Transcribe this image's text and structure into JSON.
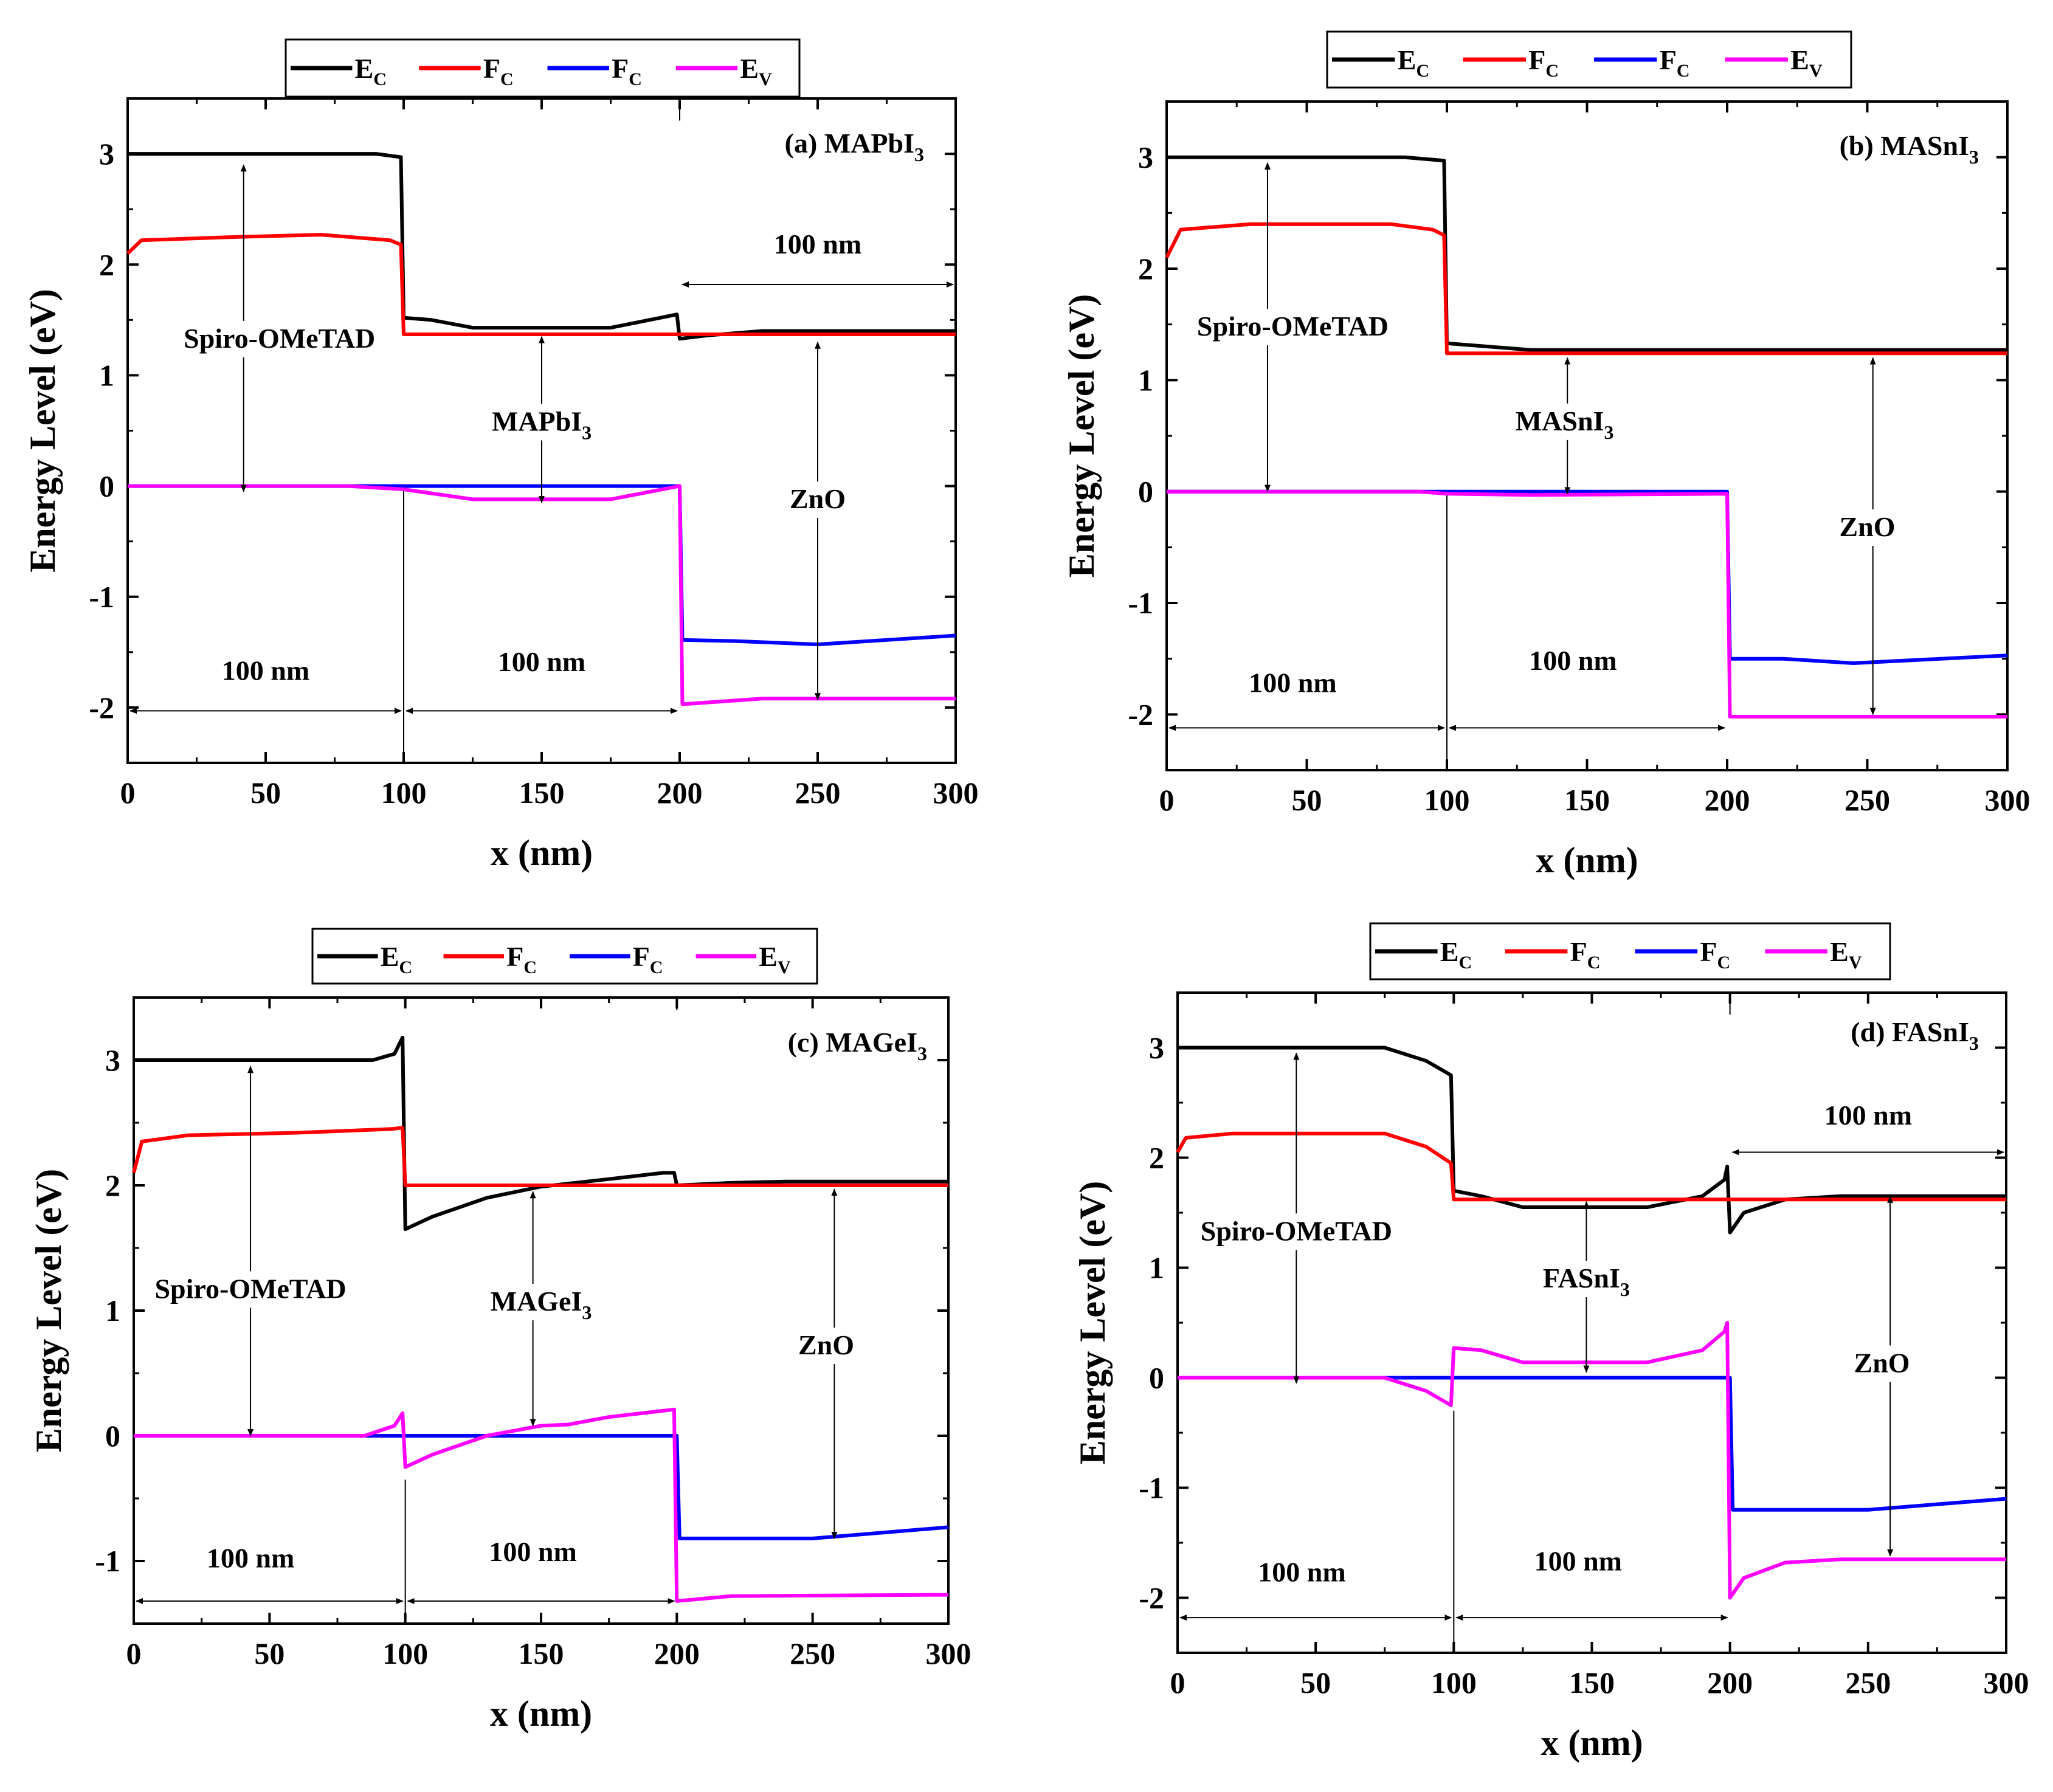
{
  "legend_entries": [
    {
      "main": "E",
      "sub": "C",
      "color": "#000000"
    },
    {
      "main": "F",
      "sub": "C",
      "color": "#ff0000"
    },
    {
      "main": "F",
      "sub": "C",
      "color": "#0000ff"
    },
    {
      "main": "E",
      "sub": "V",
      "color": "#ff00ff"
    }
  ],
  "chart_data": [
    {
      "type": "line",
      "panel_label": {
        "prefix": "(a) MAPbI",
        "sub": "3"
      },
      "xlabel": "x (nm)",
      "ylabel": "Energy Level (eV)",
      "xlim": [
        0,
        300
      ],
      "ylim": [
        -2.5,
        3.5
      ],
      "x_ticks": [
        0,
        50,
        100,
        150,
        200,
        250,
        300
      ],
      "x_tick_labels": [
        "0",
        "50",
        "100",
        "150",
        "200",
        "250",
        "300"
      ],
      "y_ticks": [
        -2,
        -1,
        0,
        1,
        2,
        3
      ],
      "y_tick_labels": [
        "-2",
        "-1",
        "0",
        "1",
        "2",
        "3"
      ],
      "layers": [
        {
          "main": "Spiro-OMeTAD",
          "sub": ""
        },
        {
          "main": "MAPbI",
          "sub": "3"
        },
        {
          "main": "ZnO",
          "sub": ""
        }
      ],
      "thickness_labels": [
        "100 nm",
        "100 nm",
        "100 nm"
      ],
      "series": [
        {
          "name": "E_C",
          "color": "#000000",
          "points": [
            [
              0,
              3.0
            ],
            [
              90,
              3.0
            ],
            [
              99,
              2.97
            ],
            [
              100,
              1.52
            ],
            [
              110,
              1.5
            ],
            [
              125,
              1.43
            ],
            [
              175,
              1.43
            ],
            [
              195,
              1.53
            ],
            [
              199,
              1.55
            ],
            [
              200,
              1.33
            ],
            [
              210,
              1.36
            ],
            [
              230,
              1.4
            ],
            [
              300,
              1.4
            ]
          ]
        },
        {
          "name": "F_C (red)",
          "color": "#ff0000",
          "points": [
            [
              0,
              2.1
            ],
            [
              5,
              2.22
            ],
            [
              40,
              2.25
            ],
            [
              70,
              2.27
            ],
            [
              95,
              2.22
            ],
            [
              99,
              2.18
            ],
            [
              100,
              1.37
            ],
            [
              300,
              1.37
            ]
          ]
        },
        {
          "name": "F_C (blue)",
          "color": "#0000ff",
          "points": [
            [
              0,
              0
            ],
            [
              200,
              0
            ],
            [
              201,
              -1.39
            ],
            [
              220,
              -1.4
            ],
            [
              250,
              -1.43
            ],
            [
              300,
              -1.35
            ]
          ]
        },
        {
          "name": "E_V",
          "color": "#ff00ff",
          "points": [
            [
              0,
              0
            ],
            [
              80,
              0
            ],
            [
              100,
              -0.03
            ],
            [
              125,
              -0.12
            ],
            [
              175,
              -0.12
            ],
            [
              200,
              0
            ],
            [
              201,
              -1.97
            ],
            [
              230,
              -1.92
            ],
            [
              300,
              -1.92
            ]
          ]
        }
      ]
    },
    {
      "type": "line",
      "panel_label": {
        "prefix": "(b) MASnI",
        "sub": "3"
      },
      "xlabel": "x (nm)",
      "ylabel": "Energy Level (eV)",
      "xlim": [
        0,
        300
      ],
      "ylim": [
        -2.5,
        3.5
      ],
      "x_ticks": [
        0,
        50,
        100,
        150,
        200,
        250,
        300
      ],
      "x_tick_labels": [
        "0",
        "50",
        "100",
        "150",
        "200",
        "250",
        "300"
      ],
      "y_ticks": [
        -2,
        -1,
        0,
        1,
        2,
        3
      ],
      "y_tick_labels": [
        "-2",
        "-1",
        "0",
        "1",
        "2",
        "3"
      ],
      "layers": [
        {
          "main": "Spiro-OMeTAD",
          "sub": ""
        },
        {
          "main": "MASnI",
          "sub": "3"
        },
        {
          "main": "ZnO",
          "sub": ""
        }
      ],
      "thickness_labels": [
        "100 nm",
        "100 nm"
      ],
      "series": [
        {
          "name": "E_C",
          "color": "#000000",
          "points": [
            [
              0,
              3.0
            ],
            [
              85,
              3.0
            ],
            [
              99,
              2.97
            ],
            [
              100,
              1.33
            ],
            [
              130,
              1.27
            ],
            [
              300,
              1.27
            ]
          ]
        },
        {
          "name": "F_C (red)",
          "color": "#ff0000",
          "points": [
            [
              0,
              2.1
            ],
            [
              5,
              2.35
            ],
            [
              30,
              2.4
            ],
            [
              80,
              2.4
            ],
            [
              95,
              2.35
            ],
            [
              99,
              2.3
            ],
            [
              100,
              1.24
            ],
            [
              300,
              1.24
            ]
          ]
        },
        {
          "name": "F_C (blue)",
          "color": "#0000ff",
          "points": [
            [
              0,
              0
            ],
            [
              200,
              0
            ],
            [
              201,
              -1.5
            ],
            [
              220,
              -1.5
            ],
            [
              245,
              -1.54
            ],
            [
              300,
              -1.47
            ]
          ]
        },
        {
          "name": "E_V",
          "color": "#ff00ff",
          "points": [
            [
              0,
              0
            ],
            [
              90,
              0
            ],
            [
              100,
              -0.02
            ],
            [
              130,
              -0.03
            ],
            [
              200,
              -0.02
            ],
            [
              201,
              -2.02
            ],
            [
              300,
              -2.02
            ]
          ]
        }
      ]
    },
    {
      "type": "line",
      "panel_label": {
        "prefix": "(c) MAGeI",
        "sub": "3"
      },
      "xlabel": "x (nm)",
      "ylabel": "Energy Level (eV)",
      "xlim": [
        0,
        300
      ],
      "ylim": [
        -1.5,
        3.5
      ],
      "x_ticks": [
        0,
        50,
        100,
        150,
        200,
        250,
        300
      ],
      "x_tick_labels": [
        "0",
        "50",
        "100",
        "150",
        "200",
        "250",
        "300"
      ],
      "y_ticks": [
        -1,
        0,
        1,
        2,
        3
      ],
      "y_tick_labels": [
        "-1",
        "0",
        "1",
        "2",
        "3"
      ],
      "layers": [
        {
          "main": "Spiro-OMeTAD",
          "sub": ""
        },
        {
          "main": "MAGeI",
          "sub": "3"
        },
        {
          "main": "ZnO",
          "sub": ""
        }
      ],
      "thickness_labels": [
        "100 nm",
        "100 nm"
      ],
      "series": [
        {
          "name": "E_C",
          "color": "#000000",
          "points": [
            [
              0,
              3.0
            ],
            [
              88,
              3.0
            ],
            [
              96,
              3.05
            ],
            [
              99,
              3.18
            ],
            [
              100,
              1.65
            ],
            [
              110,
              1.75
            ],
            [
              130,
              1.9
            ],
            [
              150,
              1.99
            ],
            [
              175,
              2.05
            ],
            [
              195,
              2.1
            ],
            [
              199,
              2.1
            ],
            [
              200,
              2.0
            ],
            [
              220,
              2.02
            ],
            [
              240,
              2.03
            ],
            [
              300,
              2.03
            ]
          ]
        },
        {
          "name": "F_C (red)",
          "color": "#ff0000",
          "points": [
            [
              0,
              2.1
            ],
            [
              3,
              2.35
            ],
            [
              20,
              2.4
            ],
            [
              60,
              2.42
            ],
            [
              95,
              2.45
            ],
            [
              99,
              2.46
            ],
            [
              100,
              2.0
            ],
            [
              300,
              2.0
            ]
          ]
        },
        {
          "name": "F_C (blue)",
          "color": "#0000ff",
          "points": [
            [
              0,
              0
            ],
            [
              200,
              0
            ],
            [
              201,
              -0.82
            ],
            [
              250,
              -0.82
            ],
            [
              300,
              -0.73
            ]
          ]
        },
        {
          "name": "E_V",
          "color": "#ff00ff",
          "points": [
            [
              0,
              0
            ],
            [
              85,
              0
            ],
            [
              96,
              0.08
            ],
            [
              99,
              0.18
            ],
            [
              100,
              -0.25
            ],
            [
              110,
              -0.15
            ],
            [
              130,
              0.0
            ],
            [
              150,
              0.08
            ],
            [
              160,
              0.09
            ],
            [
              175,
              0.15
            ],
            [
              195,
              0.2
            ],
            [
              199,
              0.21
            ],
            [
              200,
              -1.32
            ],
            [
              220,
              -1.28
            ],
            [
              300,
              -1.27
            ]
          ]
        }
      ]
    },
    {
      "type": "line",
      "panel_label": {
        "prefix": "(d) FASnI",
        "sub": "3"
      },
      "xlabel": "x (nm)",
      "ylabel": "Energy Level (eV)",
      "xlim": [
        0,
        300
      ],
      "ylim": [
        -2.5,
        3.5
      ],
      "x_ticks": [
        0,
        50,
        100,
        150,
        200,
        250,
        300
      ],
      "x_tick_labels": [
        "0",
        "50",
        "100",
        "150",
        "200",
        "250",
        "300"
      ],
      "y_ticks": [
        -2,
        -1,
        0,
        1,
        2,
        3
      ],
      "y_tick_labels": [
        "-2",
        "-1",
        "0",
        "1",
        "2",
        "3"
      ],
      "layers": [
        {
          "main": "Spiro-OMeTAD",
          "sub": ""
        },
        {
          "main": "FASnI",
          "sub": "3"
        },
        {
          "main": "ZnO",
          "sub": ""
        }
      ],
      "thickness_labels": [
        "100 nm",
        "100 nm",
        "100 nm"
      ],
      "series": [
        {
          "name": "E_C",
          "color": "#000000",
          "points": [
            [
              0,
              3.0
            ],
            [
              75,
              3.0
            ],
            [
              90,
              2.88
            ],
            [
              99,
              2.75
            ],
            [
              100,
              1.7
            ],
            [
              110,
              1.65
            ],
            [
              125,
              1.55
            ],
            [
              170,
              1.55
            ],
            [
              190,
              1.65
            ],
            [
              198,
              1.8
            ],
            [
              199,
              1.92
            ],
            [
              200,
              1.32
            ],
            [
              205,
              1.5
            ],
            [
              220,
              1.62
            ],
            [
              240,
              1.65
            ],
            [
              300,
              1.65
            ]
          ]
        },
        {
          "name": "F_C (red)",
          "color": "#ff0000",
          "points": [
            [
              0,
              2.05
            ],
            [
              3,
              2.18
            ],
            [
              20,
              2.22
            ],
            [
              75,
              2.22
            ],
            [
              90,
              2.1
            ],
            [
              99,
              1.95
            ],
            [
              100,
              1.62
            ],
            [
              300,
              1.62
            ]
          ]
        },
        {
          "name": "F_C (blue)",
          "color": "#0000ff",
          "points": [
            [
              0,
              0
            ],
            [
              200,
              0
            ],
            [
              201,
              -1.2
            ],
            [
              250,
              -1.2
            ],
            [
              300,
              -1.1
            ]
          ]
        },
        {
          "name": "E_V",
          "color": "#ff00ff",
          "points": [
            [
              0,
              0
            ],
            [
              75,
              0
            ],
            [
              90,
              -0.12
            ],
            [
              99,
              -0.25
            ],
            [
              100,
              0.27
            ],
            [
              110,
              0.25
            ],
            [
              125,
              0.14
            ],
            [
              170,
              0.14
            ],
            [
              190,
              0.25
            ],
            [
              198,
              0.42
            ],
            [
              199,
              0.5
            ],
            [
              200,
              -2.0
            ],
            [
              205,
              -1.82
            ],
            [
              220,
              -1.68
            ],
            [
              240,
              -1.65
            ],
            [
              300,
              -1.65
            ]
          ]
        }
      ]
    }
  ]
}
